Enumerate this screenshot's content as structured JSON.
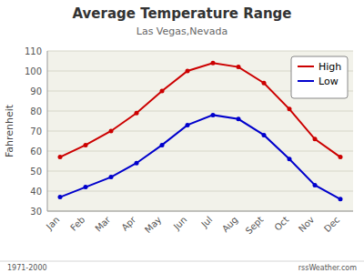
{
  "chart_data": {
    "type": "line",
    "title": "Average Temperature Range",
    "subtitle": "Las Vegas,Nevada",
    "y_label": "Fahrenheit",
    "annotations": [
      "1971-2000",
      "rssWeather.com"
    ],
    "categories": [
      "Jan",
      "Feb",
      "Mar",
      "Apr",
      "May",
      "Jun",
      "Jul",
      "Aug",
      "Sept",
      "Oct",
      "Nov",
      "Dec"
    ],
    "series": [
      {
        "name": "High",
        "color": "#cc0000",
        "marker": "dot",
        "values": [
          57,
          63,
          70,
          79,
          90,
          100,
          104,
          102,
          94,
          81,
          66,
          57
        ]
      },
      {
        "name": "Low",
        "color": "#0000cc",
        "marker": "dot",
        "values": [
          37,
          42,
          47,
          54,
          63,
          73,
          78,
          76,
          68,
          56,
          43,
          36
        ]
      }
    ],
    "ylim": [
      30,
      110
    ],
    "yticks": [
      30,
      40,
      50,
      60,
      70,
      80,
      90,
      100,
      110
    ],
    "grid": true,
    "legend": "upper right"
  }
}
